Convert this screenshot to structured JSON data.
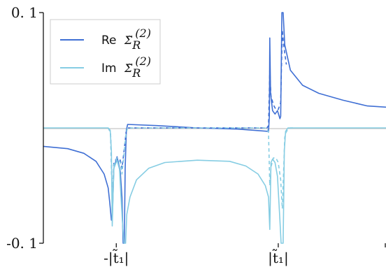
{
  "chart_data": {
    "type": "line",
    "title": "",
    "xlabel": "",
    "ylabel": "",
    "ylim": [
      -0.1,
      0.1
    ],
    "xlim": [
      -1.9,
      2.33
    ],
    "x_ticks": [
      {
        "value": -1,
        "label": "-|t̃₁|"
      },
      {
        "value": 1,
        "label": "|t̃₁|"
      }
    ],
    "y_ticks": [
      {
        "value": 0.1,
        "label": "0. 1"
      },
      {
        "value": -0.1,
        "label": "-0. 1"
      }
    ],
    "zero_line": true,
    "legend": {
      "position": "top-left",
      "entries": [
        {
          "prefix": "Re",
          "symbol": "Σ̃",
          "sub": "R",
          "sup": "(2)",
          "color": "#3f6fd4"
        },
        {
          "prefix": "Im",
          "symbol": "Σ̃",
          "sub": "R",
          "sup": "(2)",
          "color": "#86cde3"
        }
      ]
    },
    "series": [
      {
        "color": "#3f6fd4",
        "dash": "solid",
        "points": [
          [
            -1.9,
            -0.016
          ],
          [
            -1.6,
            -0.018
          ],
          [
            -1.4,
            -0.022
          ],
          [
            -1.25,
            -0.029
          ],
          [
            -1.15,
            -0.04
          ],
          [
            -1.1,
            -0.052
          ],
          [
            -1.08,
            -0.065
          ],
          [
            -1.06,
            -0.08
          ],
          [
            -1.05,
            -0.08
          ],
          [
            -1.03,
            -0.035
          ],
          [
            -0.99,
            -0.025
          ],
          [
            -0.95,
            -0.038
          ],
          [
            -0.93,
            -0.06
          ],
          [
            -0.915,
            -0.1
          ],
          [
            -0.9,
            -0.1
          ],
          [
            -0.89,
            -0.035
          ],
          [
            -0.875,
            -0.002
          ],
          [
            -0.86,
            0.003
          ],
          [
            -0.5,
            0.002
          ],
          [
            0.0,
            0.0
          ],
          [
            0.5,
            -0.001
          ],
          [
            0.88,
            -0.003
          ],
          [
            0.89,
            0.01
          ],
          [
            0.895,
            0.078
          ],
          [
            0.905,
            0.03
          ],
          [
            0.93,
            0.015
          ],
          [
            0.96,
            0.012
          ],
          [
            0.99,
            0.015
          ],
          [
            1.02,
            0.008
          ],
          [
            1.03,
            0.01
          ],
          [
            1.045,
            0.1
          ],
          [
            1.06,
            0.1
          ],
          [
            1.08,
            0.072
          ],
          [
            1.15,
            0.05
          ],
          [
            1.3,
            0.037
          ],
          [
            1.5,
            0.03
          ],
          [
            1.8,
            0.024
          ],
          [
            2.1,
            0.019
          ],
          [
            2.33,
            0.018
          ]
        ]
      },
      {
        "color": "#3f6fd4",
        "dash": "dashed",
        "points": [
          [
            -1.1,
            0.0
          ],
          [
            -1.07,
            -0.004
          ],
          [
            -1.05,
            -0.06
          ],
          [
            -1.03,
            -0.03
          ],
          [
            -0.99,
            -0.026
          ],
          [
            -0.95,
            -0.028
          ],
          [
            -0.93,
            -0.035
          ],
          [
            -0.9,
            -0.018
          ],
          [
            -0.88,
            -0.004
          ],
          [
            -0.86,
            0.0
          ],
          [
            0.86,
            0.0
          ],
          [
            0.88,
            0.002
          ],
          [
            0.895,
            0.05
          ],
          [
            0.91,
            0.028
          ],
          [
            0.94,
            0.02
          ],
          [
            0.97,
            0.016
          ],
          [
            1.0,
            0.016
          ],
          [
            1.03,
            0.022
          ],
          [
            1.05,
            0.085
          ],
          [
            1.07,
            0.07
          ],
          [
            1.1,
            0.055
          ]
        ]
      },
      {
        "color": "#86cde3",
        "dash": "solid",
        "points": [
          [
            -1.9,
            0.0
          ],
          [
            -1.1,
            0.0
          ],
          [
            -1.075,
            -0.002
          ],
          [
            -1.06,
            -0.02
          ],
          [
            -1.05,
            -0.085
          ],
          [
            -1.04,
            -0.06
          ],
          [
            -1.03,
            -0.035
          ],
          [
            -0.99,
            -0.028
          ],
          [
            -0.96,
            -0.036
          ],
          [
            -0.94,
            -0.062
          ],
          [
            -0.925,
            -0.08
          ],
          [
            -0.905,
            -0.1
          ],
          [
            -0.885,
            -0.1
          ],
          [
            -0.87,
            -0.075
          ],
          [
            -0.83,
            -0.06
          ],
          [
            -0.75,
            -0.045
          ],
          [
            -0.6,
            -0.035
          ],
          [
            -0.4,
            -0.03
          ],
          [
            0.0,
            -0.028
          ],
          [
            0.4,
            -0.029
          ],
          [
            0.6,
            -0.033
          ],
          [
            0.75,
            -0.04
          ],
          [
            0.84,
            -0.05
          ],
          [
            0.88,
            -0.06
          ],
          [
            0.895,
            -0.088
          ],
          [
            0.91,
            -0.03
          ],
          [
            0.93,
            -0.027
          ],
          [
            0.96,
            -0.03
          ],
          [
            0.99,
            -0.042
          ],
          [
            1.02,
            -0.08
          ],
          [
            1.035,
            -0.1
          ],
          [
            1.06,
            -0.1
          ],
          [
            1.075,
            -0.02
          ],
          [
            1.09,
            -0.003
          ],
          [
            1.12,
            0.0
          ],
          [
            2.33,
            0.0
          ]
        ]
      },
      {
        "color": "#86cde3",
        "dash": "dashed",
        "points": [
          [
            -1.1,
            0.0
          ],
          [
            -1.07,
            -0.004
          ],
          [
            -1.05,
            -0.06
          ],
          [
            -1.03,
            -0.032
          ],
          [
            -0.99,
            -0.026
          ],
          [
            -0.95,
            -0.03
          ],
          [
            -0.93,
            -0.04
          ],
          [
            -0.9,
            -0.02
          ],
          [
            -0.88,
            -0.005
          ],
          [
            -0.86,
            0.0
          ],
          [
            0.86,
            0.0
          ],
          [
            0.88,
            -0.004
          ],
          [
            0.895,
            -0.05
          ],
          [
            0.91,
            -0.034
          ],
          [
            0.94,
            -0.026
          ],
          [
            0.97,
            -0.026
          ],
          [
            1.0,
            -0.03
          ],
          [
            1.03,
            -0.045
          ],
          [
            1.05,
            -0.07
          ],
          [
            1.07,
            -0.03
          ],
          [
            1.08,
            -0.008
          ],
          [
            1.1,
            -0.003
          ],
          [
            1.15,
            0.0
          ],
          [
            1.2,
            0.0
          ]
        ]
      }
    ]
  }
}
